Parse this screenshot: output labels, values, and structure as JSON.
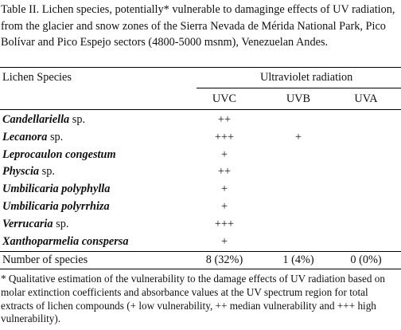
{
  "caption": "Table II. Lichen species, potentially* vulnerable to damaginge effects of UV radiation, from the glacier and snow zones of the Sierra Nevada de Mérida National Park, Pico Bolívar and Pico Espejo sectors (4800-5000 msnm), Venezuelan Andes.",
  "table": {
    "species_header": "Lichen Species",
    "uv_header": "Ultraviolet radiation",
    "columns": [
      "UVC",
      "UVB",
      "UVA"
    ],
    "rows": [
      {
        "genus": "Candellariella",
        "suffix": " sp.",
        "uvc": "++",
        "uvb": "",
        "uva": ""
      },
      {
        "genus": "Lecanora",
        "suffix": " sp.",
        "uvc": "+++",
        "uvb": "+",
        "uva": ""
      },
      {
        "genus": "Leprocaulon congestum",
        "suffix": "",
        "uvc": "+",
        "uvb": "",
        "uva": ""
      },
      {
        "genus": "Physcia",
        "suffix": " sp.",
        "uvc": "++",
        "uvb": "",
        "uva": ""
      },
      {
        "genus": "Umbilicaria polyphylla",
        "suffix": "",
        "uvc": "+",
        "uvb": "",
        "uva": ""
      },
      {
        "genus": "Umbilicaria polyrrhiza",
        "suffix": "",
        "uvc": "+",
        "uvb": "",
        "uva": ""
      },
      {
        "genus": "Verrucaria",
        "suffix": " sp.",
        "uvc": "+++",
        "uvb": "",
        "uva": ""
      },
      {
        "genus": "Xanthoparmelia conspersa",
        "suffix": "",
        "uvc": "+",
        "uvb": "",
        "uva": ""
      }
    ],
    "summary": {
      "label": "Number of species",
      "uvc": "8 (32%)",
      "uvb": "1 (4%)",
      "uva": "0 (0%)"
    }
  },
  "footnote": "* Qualitative estimation of the vulnerability to the damage effects of UV radiation based on molar extinction coefficients and absorbance values at the UV spectrum region for total extracts of lichen compounds (+ low vulnerability, ++ median vulnerability and +++ high vulnerability)."
}
